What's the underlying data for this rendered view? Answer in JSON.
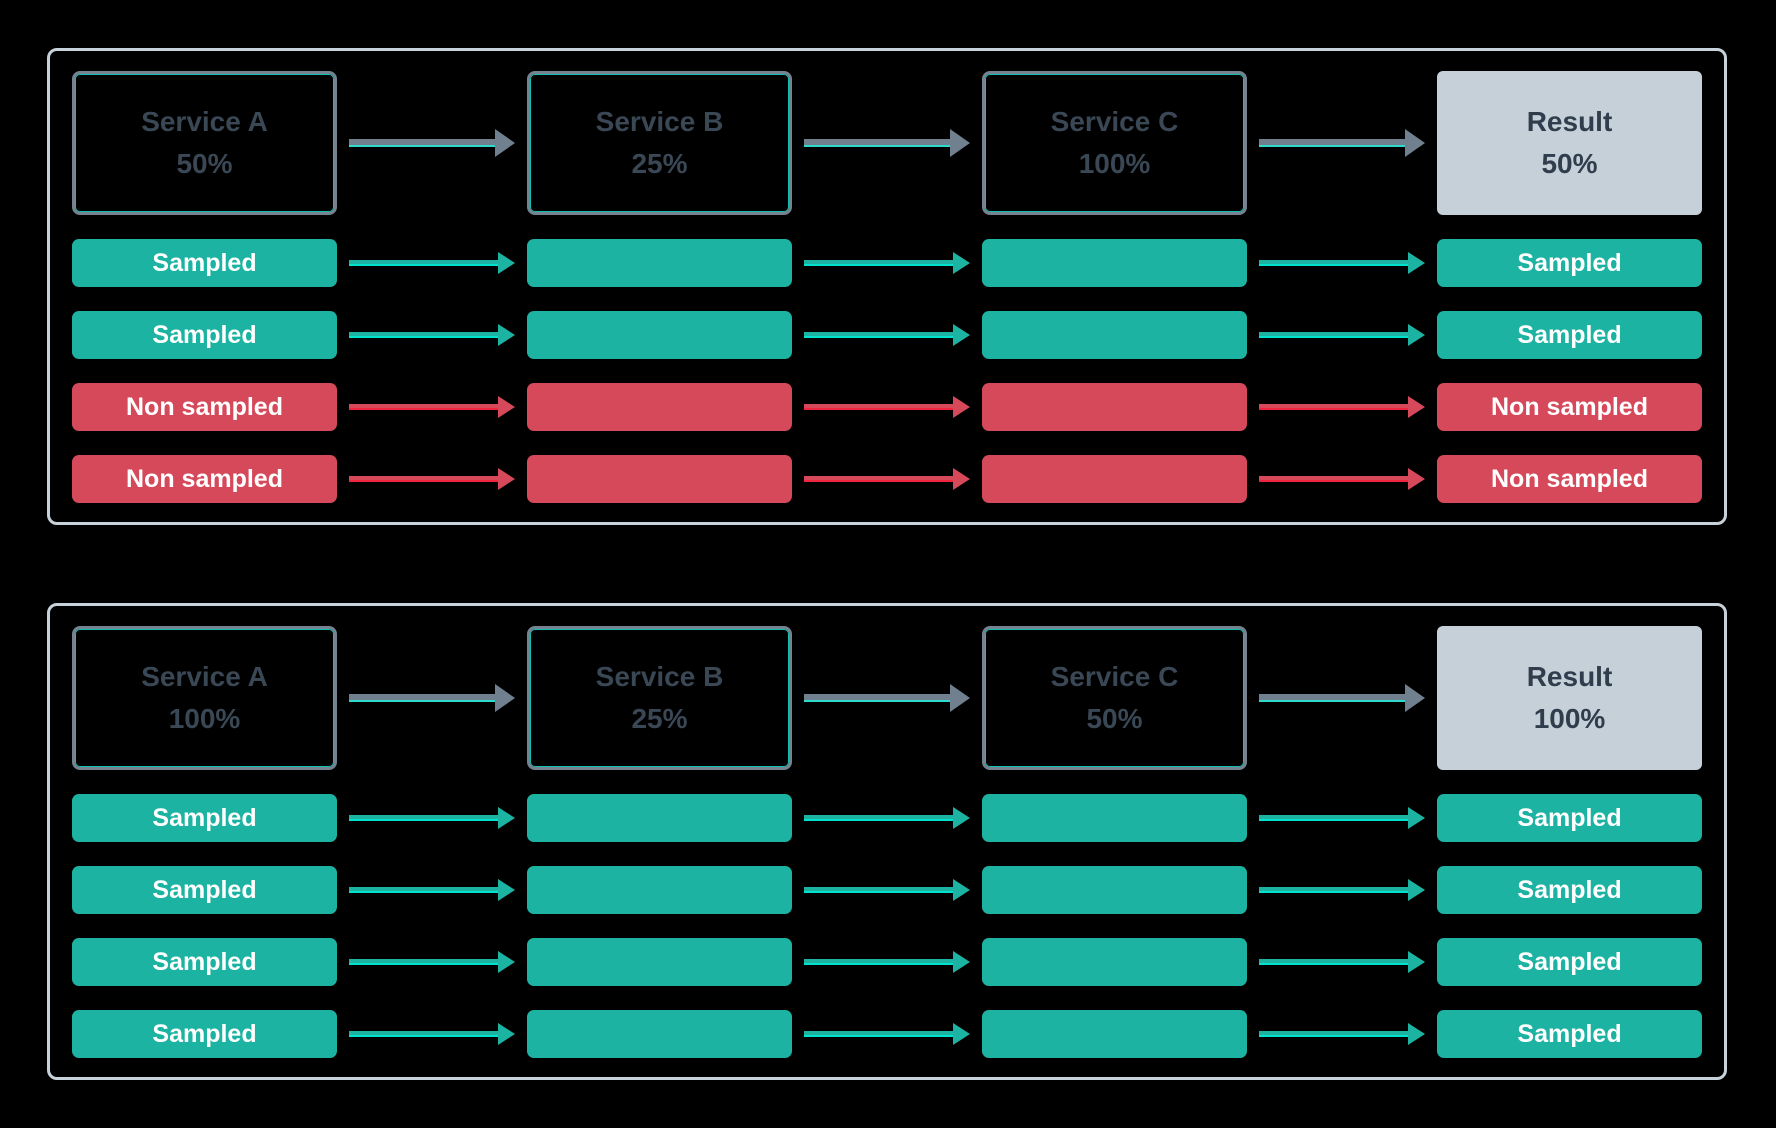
{
  "colors": {
    "background": "#000000",
    "panel_border": "#c6d1da",
    "service_box_border": "#75828f",
    "service_box_inner_line": "#16e0d2",
    "service_text": "#3a4755",
    "result_box_bg": "#c6d0d9",
    "result_text": "#2f3d4d",
    "sampled_green": "#1cb3a2",
    "non_sampled_red": "#d6495b",
    "arrow_gray": "#71808f",
    "arrow_cyan_accent": "#2fd9cc",
    "arrow_red_accent": "#f0253c",
    "pill_text": "#ffffff"
  },
  "panels": [
    {
      "services": [
        {
          "name": "Service A",
          "rate": "50%"
        },
        {
          "name": "Service B",
          "rate": "25%"
        },
        {
          "name": "Service C",
          "rate": "100%"
        },
        {
          "name": "Result",
          "rate": "50%"
        }
      ],
      "rows": [
        {
          "status": "sampled",
          "left": "Sampled",
          "right": "Sampled"
        },
        {
          "status": "sampled",
          "left": "Sampled",
          "right": "Sampled"
        },
        {
          "status": "non-sampled",
          "left": "Non sampled",
          "right": "Non sampled"
        },
        {
          "status": "non-sampled",
          "left": "Non sampled",
          "right": "Non sampled"
        }
      ]
    },
    {
      "services": [
        {
          "name": "Service A",
          "rate": "100%"
        },
        {
          "name": "Service B",
          "rate": "25%"
        },
        {
          "name": "Service C",
          "rate": "50%"
        },
        {
          "name": "Result",
          "rate": "100%"
        }
      ],
      "rows": [
        {
          "status": "sampled",
          "left": "Sampled",
          "right": "Sampled"
        },
        {
          "status": "sampled",
          "left": "Sampled",
          "right": "Sampled"
        },
        {
          "status": "sampled",
          "left": "Sampled",
          "right": "Sampled"
        },
        {
          "status": "sampled",
          "left": "Sampled",
          "right": "Sampled"
        }
      ]
    }
  ]
}
